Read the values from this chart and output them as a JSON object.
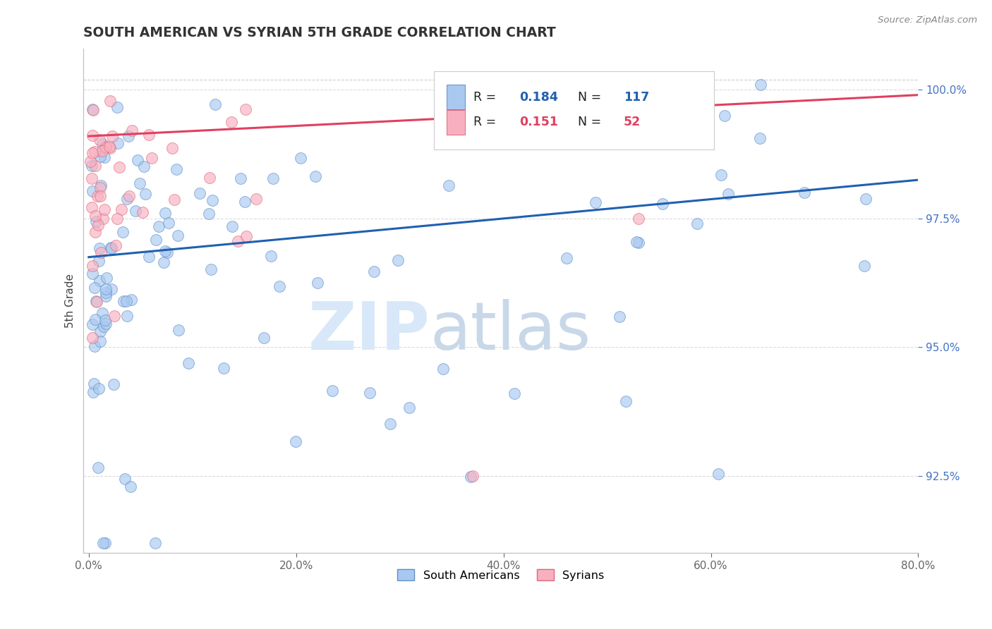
{
  "title": "SOUTH AMERICAN VS SYRIAN 5TH GRADE CORRELATION CHART",
  "source": "Source: ZipAtlas.com",
  "ylabel": "5th Grade",
  "xlim": [
    -0.5,
    80.0
  ],
  "ylim": [
    91.0,
    100.8
  ],
  "xticks": [
    0.0,
    20.0,
    40.0,
    60.0,
    80.0
  ],
  "xticklabels": [
    "0.0%",
    "20.0%",
    "40.0%",
    "60.0%",
    "80.0%"
  ],
  "yticks": [
    92.5,
    95.0,
    97.5,
    100.0
  ],
  "yticklabels": [
    "92.5%",
    "95.0%",
    "97.5%",
    "100.0%"
  ],
  "blue_color": "#a8c8f0",
  "blue_edge": "#6090c8",
  "pink_color": "#f8b0c0",
  "pink_edge": "#e06878",
  "blue_line_color": "#2060b0",
  "pink_line_color": "#e04060",
  "R_blue": 0.184,
  "N_blue": 117,
  "R_pink": 0.151,
  "N_pink": 52,
  "legend_blue": "South Americans",
  "legend_pink": "Syrians",
  "watermark_zip": "ZIP",
  "watermark_atlas": "atlas",
  "blue_line_x0": 0.0,
  "blue_line_y0": 96.75,
  "blue_line_x1": 80.0,
  "blue_line_y1": 98.25,
  "pink_line_x0": 0.0,
  "pink_line_y0": 99.1,
  "pink_line_x1": 80.0,
  "pink_line_y1": 99.9,
  "grid_color": "#cccccc",
  "dashed_line_y": 100.2,
  "dashed_line_color": "#aaaaaa"
}
